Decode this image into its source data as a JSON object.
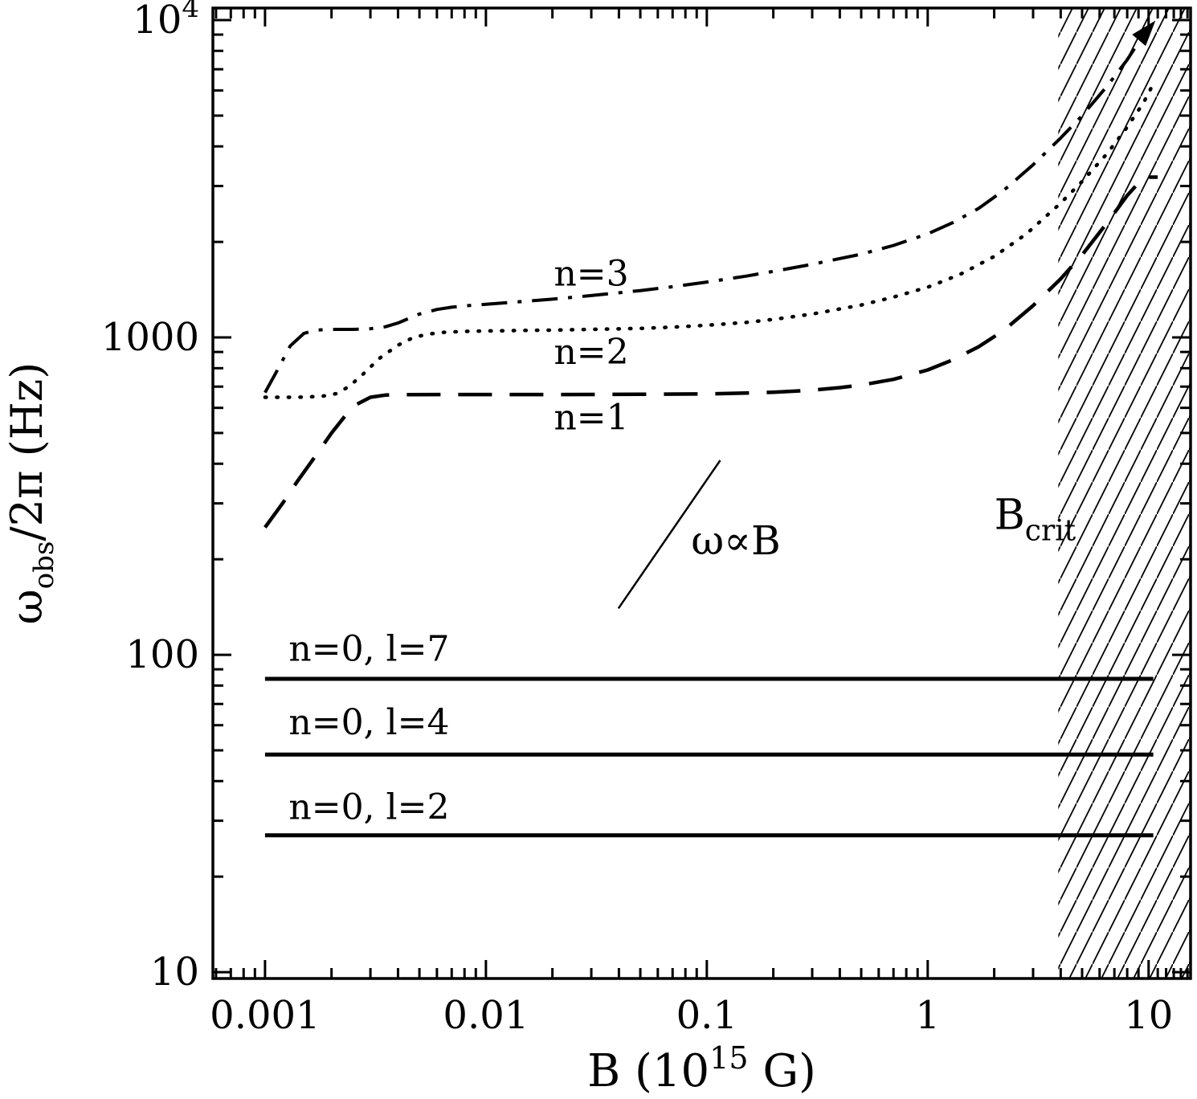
{
  "figure": {
    "background": "#ffffff",
    "ink_color": "#000000",
    "description_labels": {
      "bcrit": "Bcrit",
      "proportionality": "ω∝B"
    }
  },
  "chart_data": {
    "type": "line",
    "title": "",
    "x_scale": "log",
    "y_scale": "log",
    "xlabel": {
      "prefix": "B (10",
      "sup": "15",
      "suffix": " G)"
    },
    "ylabel": {
      "prefix": "ω",
      "sub": "obs",
      "suffix": "/2π (Hz)"
    },
    "xlim": [
      0.00058,
      15.5
    ],
    "ylim": [
      9.55,
      10900
    ],
    "xlim_log": [
      -3.236,
      1.19
    ],
    "ylim_log": [
      0.98,
      4.038
    ],
    "grid": false,
    "legend": "inline-labels",
    "x_major_ticks": [
      {
        "v": 0.001,
        "label": "0.001"
      },
      {
        "v": 0.01,
        "label": "0.01"
      },
      {
        "v": 0.1,
        "label": "0.1"
      },
      {
        "v": 1,
        "label": "1"
      },
      {
        "v": 10,
        "label": "10"
      }
    ],
    "y_major_ticks": [
      {
        "v": 10,
        "label": "10"
      },
      {
        "v": 100,
        "label": "100"
      },
      {
        "v": 1000,
        "label": "1000"
      },
      {
        "v": 10000,
        "label": "10",
        "sup": "4"
      }
    ],
    "x_minor_multipliers": [
      2,
      3,
      4,
      5,
      6,
      7,
      8,
      9
    ],
    "x_extra_minor_values": [
      11,
      12,
      13,
      14,
      15
    ],
    "y_minor_multipliers": [
      2,
      3,
      4,
      5,
      6,
      7,
      8,
      9
    ],
    "series": [
      {
        "name": "n=3",
        "style": "dashdot",
        "arrow": true,
        "label": {
          "text": "n=3",
          "x": 0.03,
          "y": 1580,
          "anchor": "middle"
        },
        "points": [
          [
            0.001,
            670
          ],
          [
            0.00115,
            800
          ],
          [
            0.0013,
            940
          ],
          [
            0.0015,
            1030
          ],
          [
            0.0017,
            1055
          ],
          [
            0.002,
            1060
          ],
          [
            0.0025,
            1060
          ],
          [
            0.003,
            1065
          ],
          [
            0.0035,
            1080
          ],
          [
            0.004,
            1110
          ],
          [
            0.0045,
            1150
          ],
          [
            0.005,
            1185
          ],
          [
            0.006,
            1225
          ],
          [
            0.007,
            1245
          ],
          [
            0.008,
            1258
          ],
          [
            0.01,
            1272
          ],
          [
            0.013,
            1290
          ],
          [
            0.02,
            1320
          ],
          [
            0.03,
            1355
          ],
          [
            0.05,
            1405
          ],
          [
            0.07,
            1445
          ],
          [
            0.1,
            1495
          ],
          [
            0.15,
            1560
          ],
          [
            0.2,
            1615
          ],
          [
            0.3,
            1700
          ],
          [
            0.5,
            1830
          ],
          [
            0.7,
            1950
          ],
          [
            1,
            2120
          ],
          [
            1.3,
            2300
          ],
          [
            1.7,
            2550
          ],
          [
            2.2,
            2900
          ],
          [
            3,
            3500
          ],
          [
            4,
            4250
          ],
          [
            5,
            5000
          ],
          [
            6.5,
            6200
          ],
          [
            8,
            7500
          ],
          [
            9.5,
            9000
          ],
          [
            10.4,
            9700
          ]
        ]
      },
      {
        "name": "n=2",
        "style": "dotted",
        "arrow": false,
        "label": {
          "text": "n=2",
          "x": 0.03,
          "y": 895,
          "anchor": "middle"
        },
        "points": [
          [
            0.001,
            648
          ],
          [
            0.0014,
            648
          ],
          [
            0.0018,
            652
          ],
          [
            0.0021,
            665
          ],
          [
            0.0024,
            700
          ],
          [
            0.0028,
            770
          ],
          [
            0.0033,
            860
          ],
          [
            0.004,
            945
          ],
          [
            0.0047,
            1000
          ],
          [
            0.0055,
            1025
          ],
          [
            0.0065,
            1038
          ],
          [
            0.008,
            1045
          ],
          [
            0.01,
            1048
          ],
          [
            0.015,
            1052
          ],
          [
            0.02,
            1055
          ],
          [
            0.03,
            1060
          ],
          [
            0.05,
            1068
          ],
          [
            0.07,
            1078
          ],
          [
            0.1,
            1092
          ],
          [
            0.15,
            1115
          ],
          [
            0.2,
            1140
          ],
          [
            0.3,
            1185
          ],
          [
            0.5,
            1265
          ],
          [
            0.7,
            1340
          ],
          [
            1,
            1440
          ],
          [
            1.4,
            1580
          ],
          [
            2,
            1800
          ],
          [
            2.8,
            2120
          ],
          [
            4,
            2650
          ],
          [
            5,
            3100
          ],
          [
            6.5,
            3800
          ],
          [
            8,
            4600
          ],
          [
            9.5,
            5500
          ],
          [
            10.5,
            6300
          ]
        ]
      },
      {
        "name": "n=1",
        "style": "longdash",
        "arrow": false,
        "label": {
          "text": "n=1",
          "x": 0.03,
          "y": 556,
          "anchor": "middle"
        },
        "points": [
          [
            0.001,
            252
          ],
          [
            0.0012,
            300
          ],
          [
            0.0014,
            352
          ],
          [
            0.0017,
            425
          ],
          [
            0.002,
            500
          ],
          [
            0.0023,
            565
          ],
          [
            0.0026,
            615
          ],
          [
            0.003,
            648
          ],
          [
            0.0035,
            658
          ],
          [
            0.004,
            660
          ],
          [
            0.006,
            661
          ],
          [
            0.01,
            661
          ],
          [
            0.02,
            661
          ],
          [
            0.05,
            662
          ],
          [
            0.1,
            664
          ],
          [
            0.15,
            668
          ],
          [
            0.2,
            672
          ],
          [
            0.3,
            682
          ],
          [
            0.4,
            695
          ],
          [
            0.5,
            708
          ],
          [
            0.7,
            738
          ],
          [
            1,
            790
          ],
          [
            1.3,
            850
          ],
          [
            1.7,
            935
          ],
          [
            2.2,
            1050
          ],
          [
            3,
            1260
          ],
          [
            4,
            1530
          ],
          [
            5,
            1820
          ],
          [
            6.5,
            2300
          ],
          [
            8,
            2800
          ],
          [
            9.5,
            3200
          ],
          [
            11,
            3200
          ]
        ]
      },
      {
        "name": "n=0, l=7",
        "style": "solid",
        "arrow": false,
        "label": {
          "text": "n=0, l=7",
          "x": 0.00128,
          "y": 104,
          "anchor": "start"
        },
        "points": [
          [
            0.001,
            84
          ],
          [
            10.5,
            84
          ]
        ]
      },
      {
        "name": "n=0, l=4",
        "style": "solid",
        "arrow": false,
        "label": {
          "text": "n=0, l=4",
          "x": 0.00128,
          "y": 61,
          "anchor": "start"
        },
        "points": [
          [
            0.001,
            48.5
          ],
          [
            10.5,
            48.5
          ]
        ]
      },
      {
        "name": "n=0, l=2",
        "style": "solid",
        "arrow": false,
        "label": {
          "text": "n=0, l=2",
          "x": 0.00128,
          "y": 33,
          "anchor": "start"
        },
        "points": [
          [
            0.001,
            27
          ],
          [
            10.5,
            27
          ]
        ]
      }
    ],
    "annotations": {
      "prop_line": {
        "x1": 0.0398,
        "y1": 140,
        "x2": 0.115,
        "y2": 410
      },
      "prop_label": {
        "text": "ω∝B",
        "x": 0.085,
        "y": 225
      },
      "bcrit_label": {
        "base": "B",
        "sub": "crit",
        "x": 2.0,
        "y": 270
      },
      "hatch_region": {
        "x_start": 3.9
      }
    }
  }
}
